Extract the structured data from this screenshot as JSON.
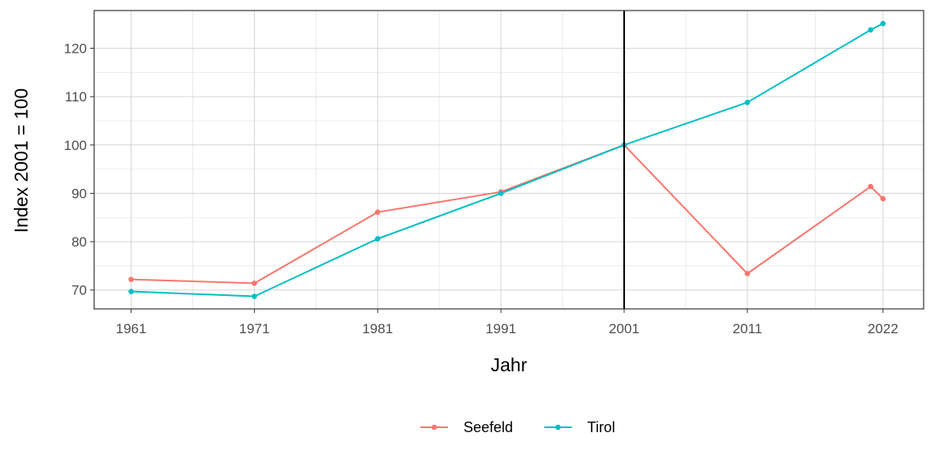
{
  "chart_data": {
    "type": "line",
    "xlabel": "Jahr",
    "ylabel": "Index 2001 = 100",
    "x": [
      1961,
      1971,
      1981,
      1991,
      2001,
      2011,
      2021,
      2022
    ],
    "x_ticks": [
      1961,
      1971,
      1981,
      1991,
      2001,
      2011,
      2022
    ],
    "y_ticks": [
      70,
      80,
      90,
      100,
      110,
      120
    ],
    "xlim": [
      1958,
      2025.3
    ],
    "ylim": [
      66.1,
      127.8
    ],
    "reference_line_x": 2001,
    "grid": true,
    "legend_position": "bottom",
    "series": [
      {
        "name": "Seefeld",
        "color": "#F8766D",
        "values": [
          72.2,
          71.4,
          86.1,
          90.3,
          100,
          73.4,
          91.4,
          88.9
        ]
      },
      {
        "name": "Tirol",
        "color": "#00BFC4",
        "values": [
          69.7,
          68.7,
          80.6,
          90.0,
          100,
          108.8,
          123.8,
          125.1
        ]
      }
    ]
  }
}
